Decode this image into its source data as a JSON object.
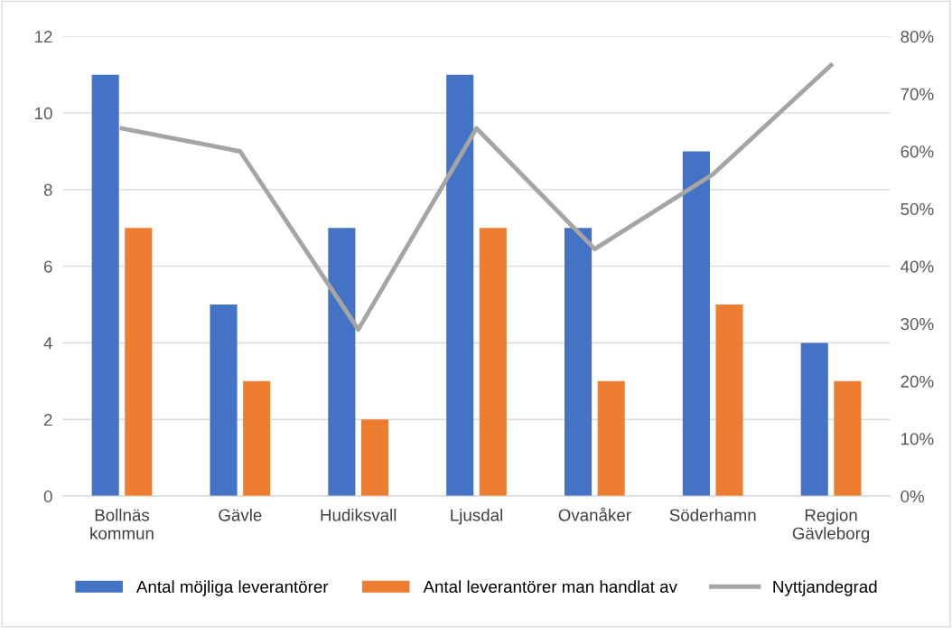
{
  "chart_data": {
    "type": "bar",
    "categories": [
      "Bollnäs\nkommun",
      "Gävle",
      "Hudiksvall",
      "Ljusdal",
      "Ovanåker",
      "Söderhamn",
      "Region\nGävleborg"
    ],
    "series": [
      {
        "name": "Antal möjliga leverantörer",
        "color": "#4472c4",
        "values": [
          11,
          5,
          7,
          11,
          7,
          9,
          4
        ]
      },
      {
        "name": "Antal leverantörer man handlat av",
        "color": "#ed7d31",
        "values": [
          7,
          3,
          2,
          7,
          3,
          5,
          3
        ]
      },
      {
        "name": "Nyttjandegrad",
        "type": "line",
        "axis": "y2",
        "color": "#a5a5a5",
        "values": [
          64,
          60,
          29,
          64,
          43,
          56,
          75
        ]
      }
    ],
    "ylim": [
      0,
      12
    ],
    "yticks": [
      0,
      2,
      4,
      6,
      8,
      10,
      12
    ],
    "y2lim": [
      0,
      80
    ],
    "y2ticks": [
      {
        "value": 0,
        "label": "0%"
      },
      {
        "value": 10,
        "label": "10%"
      },
      {
        "value": 20,
        "label": "20%"
      },
      {
        "value": 30,
        "label": "30%"
      },
      {
        "value": 40,
        "label": "40%"
      },
      {
        "value": 50,
        "label": "50%"
      },
      {
        "value": 60,
        "label": "60%"
      },
      {
        "value": 70,
        "label": "70%"
      },
      {
        "value": 80,
        "label": "80%"
      }
    ],
    "grid": "y",
    "legend": "bottom",
    "marker": "none"
  }
}
